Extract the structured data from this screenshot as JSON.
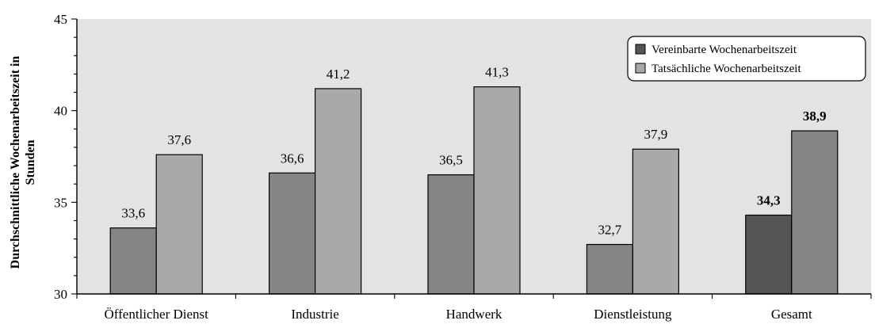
{
  "chart_data": {
    "type": "bar",
    "categories": [
      "Öffentlicher Dienst",
      "Industrie",
      "Handwerk",
      "Dienstleistung",
      "Gesamt"
    ],
    "series": [
      {
        "name": "Vereinbarte Wochenarbeitszeit",
        "values": [
          33.6,
          36.6,
          36.5,
          32.7,
          34.3
        ],
        "labels": [
          "33,6",
          "36,6",
          "36,5",
          "32,7",
          "34,3"
        ]
      },
      {
        "name": "Tatsächliche Wochenarbeitszeit",
        "values": [
          37.6,
          41.2,
          41.3,
          37.9,
          38.9
        ],
        "labels": [
          "37,6",
          "41,2",
          "41,3",
          "37,9",
          "38,9"
        ]
      }
    ],
    "ylabel_lines": [
      "Durchschnittliche Wochenarbeitszeit in",
      "Stunden"
    ],
    "ylim": [
      30,
      45
    ],
    "yticks": [
      30,
      35,
      40,
      45
    ],
    "legend_position": "top-right",
    "bold_category": "Gesamt",
    "colors": {
      "plot_background": "#e3e3e3",
      "vereinbart": "#858585",
      "tatsaechlich": "#a9a9a9",
      "vereinbart_gesamt": "#555555",
      "tatsaechlich_gesamt": "#858585"
    }
  }
}
